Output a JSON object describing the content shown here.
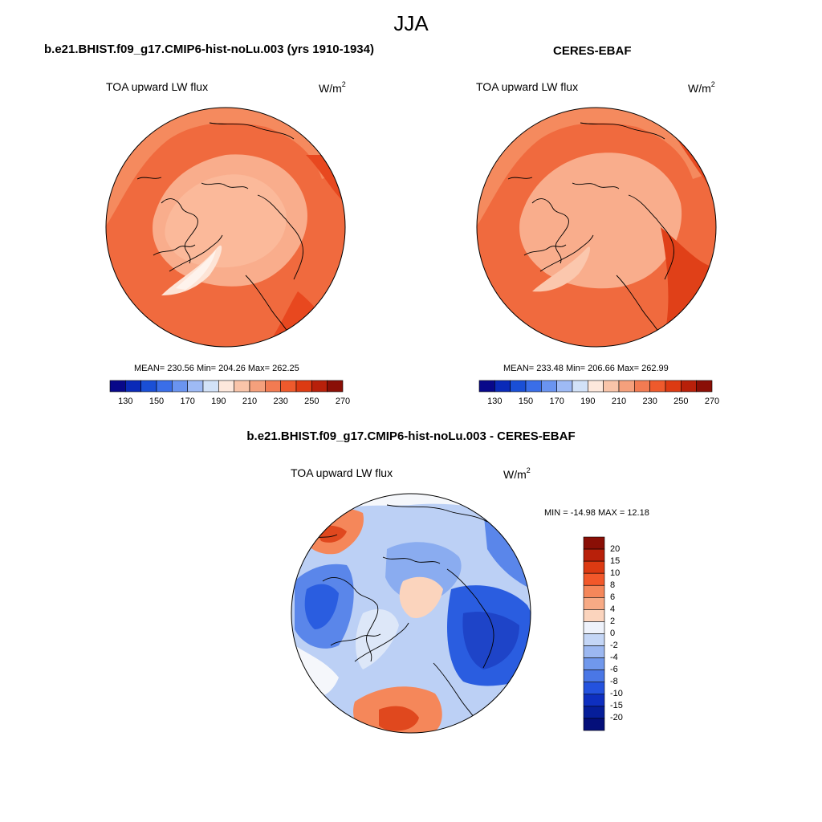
{
  "title": "JJA",
  "panels": {
    "model": {
      "title": "b.e21.BHIST.f09_g17.CMIP6-hist-noLu.003 (yrs 1910-1934)",
      "variable": "TOA upward LW flux",
      "units": "W/m",
      "units_sup": "2",
      "stats": "MEAN= 230.56  Min= 204.26  Max= 262.25"
    },
    "obs": {
      "title": "CERES-EBAF",
      "variable": "TOA upward LW flux",
      "units": "W/m",
      "units_sup": "2",
      "stats": "MEAN= 233.48  Min= 206.66  Max= 262.99"
    },
    "diff": {
      "title": "b.e21.BHIST.f09_g17.CMIP6-hist-noLu.003 - CERES-EBAF",
      "variable": "TOA upward LW flux",
      "units": "W/m",
      "units_sup": "2",
      "stats": "MIN = -14.98 MAX =  12.18"
    }
  },
  "colorbars": {
    "abs": {
      "colors": [
        "#08088a",
        "#0a2ab8",
        "#1a4fd6",
        "#3a6ee8",
        "#6a94f0",
        "#9ebaf5",
        "#d2e2f8",
        "#fde8dc",
        "#f9c4a9",
        "#f5a07c",
        "#f27b52",
        "#ee5a2c",
        "#dc3a12",
        "#b8200a",
        "#8a0f06"
      ],
      "tick_labels": [
        "130",
        "150",
        "170",
        "190",
        "210",
        "230",
        "250",
        "270"
      ]
    },
    "diff": {
      "colors": [
        "#8a0f06",
        "#b8200a",
        "#dc3a12",
        "#f2582a",
        "#f5875a",
        "#f7aa85",
        "#fbd4bd",
        "#eef2fb",
        "#c4d6f6",
        "#9cb8f1",
        "#7098ec",
        "#4a77e6",
        "#2452de",
        "#0e2fc0",
        "#061e9a",
        "#040f7a"
      ],
      "tick_labels": [
        "20",
        "15",
        "10",
        "8",
        "6",
        "4",
        "2",
        "0",
        "-2",
        "-4",
        "-6",
        "-8",
        "-10",
        "-15",
        "-20"
      ]
    }
  },
  "map_colors": {
    "model_fill": [
      "#f06a3e",
      "#f58a5e",
      "#f9ad8c",
      "#fde4d6",
      "#e8481f"
    ],
    "obs_fill": [
      "#f06a3e",
      "#f58a5e",
      "#f9ad8c",
      "#fde4d6",
      "#e04018"
    ],
    "diff_fill": [
      "#f5f7fb",
      "#bcd0f5",
      "#8aacf0",
      "#5a86ea",
      "#2a5de0",
      "#fbd4bd",
      "#f5875a",
      "#e0481e"
    ]
  }
}
